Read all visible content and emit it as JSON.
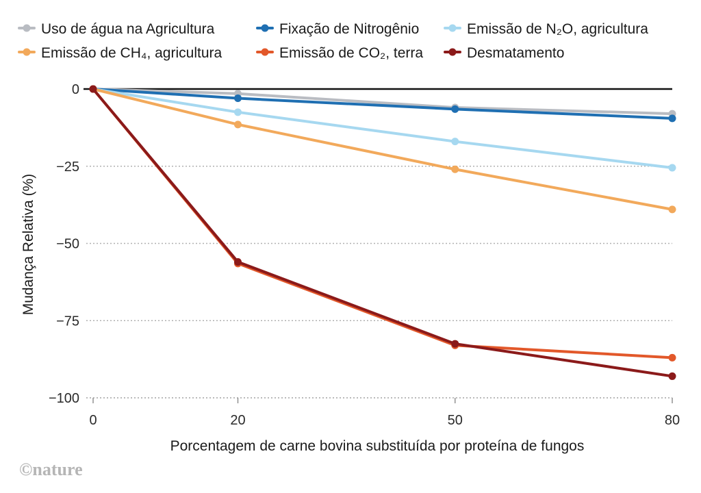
{
  "chart_data": {
    "type": "line",
    "title": "",
    "xlabel": "Porcentagem de carne bovina substituída por proteína de fungos",
    "ylabel": "Mudança Relativa (%)",
    "x": [
      0,
      20,
      50,
      80
    ],
    "x_ticks": [
      "0",
      "20",
      "50",
      "80"
    ],
    "y_ticks": [
      "0",
      "-25",
      "-50",
      "-75",
      "-100"
    ],
    "ylim": [
      -100,
      0
    ],
    "xlim": [
      0,
      80
    ],
    "grid": "horizontal dotted",
    "legend_position": "top",
    "series": [
      {
        "name": "Uso de água na Agricultura",
        "color": "#b9bcc2",
        "values": [
          0,
          -1.5,
          -6,
          -8
        ]
      },
      {
        "name": "Fixação de Nitrogênio",
        "color": "#1f6fb2",
        "values": [
          0,
          -3,
          -6.5,
          -9.5
        ]
      },
      {
        "name": "Emissão de N₂O, agricultura",
        "color": "#a6d8f0",
        "values": [
          0,
          -7.5,
          -17,
          -25.5
        ]
      },
      {
        "name": "Emissão de CH₄, agricultura",
        "color": "#f2a95b",
        "values": [
          0,
          -11.5,
          -26,
          -39
        ]
      },
      {
        "name": "Emissão de CO₂, terra",
        "color": "#e2582a",
        "values": [
          0,
          -56.5,
          -83,
          -87
        ]
      },
      {
        "name": "Desmatamento",
        "color": "#8b1a1a",
        "values": [
          0,
          -56,
          -82.5,
          -93
        ]
      }
    ]
  },
  "logo": {
    "text": "©nature"
  }
}
